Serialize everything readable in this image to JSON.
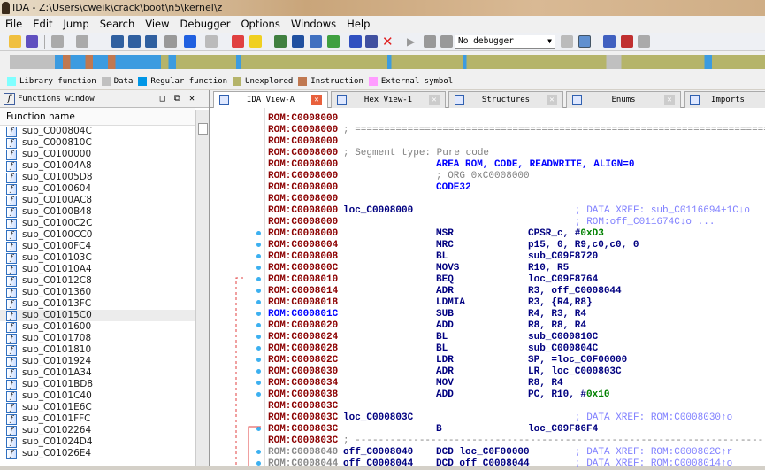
{
  "window": {
    "title": "IDA - Z:\\Users\\cweik\\crack\\boot\\n5\\kernel\\z"
  },
  "menu": [
    "File",
    "Edit",
    "Jump",
    "Search",
    "View",
    "Debugger",
    "Options",
    "Windows",
    "Help"
  ],
  "toolbar": {
    "debugger_select": "No debugger"
  },
  "legend": [
    {
      "label": "Library function",
      "color": "#80ffff"
    },
    {
      "label": "Data",
      "color": "#c0c0c0"
    },
    {
      "label": "Regular function",
      "color": "#0096e6"
    },
    {
      "label": "Unexplored",
      "color": "#b5b46a"
    },
    {
      "label": "Instruction",
      "color": "#c07850"
    },
    {
      "label": "External symbol",
      "color": "#ff9cff"
    }
  ],
  "functions_window": {
    "title": "Functions window",
    "column": "Function name",
    "selected": "sub_C01015C0",
    "items": [
      "sub_C000804C",
      "sub_C000810C",
      "sub_C0100000",
      "sub_C01004A8",
      "sub_C01005D8",
      "sub_C0100604",
      "sub_C0100AC8",
      "sub_C0100B48",
      "sub_C0100C2C",
      "sub_C0100CC0",
      "sub_C0100FC4",
      "sub_C010103C",
      "sub_C01010A4",
      "sub_C01012C8",
      "sub_C0101360",
      "sub_C01013FC",
      "sub_C01015C0",
      "sub_C0101600",
      "sub_C0101708",
      "sub_C0101810",
      "sub_C0101924",
      "sub_C0101A34",
      "sub_C0101BD8",
      "sub_C0101C40",
      "sub_C0101E6C",
      "sub_C0101FFC",
      "sub_C0102264",
      "sub_C01024D4",
      "sub_C01026E4"
    ]
  },
  "tabs": [
    {
      "label": "IDA View-A",
      "active": true
    },
    {
      "label": "Hex View-1"
    },
    {
      "label": "Structures"
    },
    {
      "label": "Enums"
    },
    {
      "label": "Imports"
    }
  ],
  "disasm": [
    {
      "addr": "ROM:C0008000"
    },
    {
      "addr": "ROM:C0008000",
      "sep": "; ============================================================================"
    },
    {
      "addr": "ROM:C0008000"
    },
    {
      "addr": "ROM:C0008000",
      "seg": "; Segment type: Pure code"
    },
    {
      "addr": "ROM:C0008000",
      "dir": "AREA ROM, CODE, READWRITE, ALIGN=0"
    },
    {
      "addr": "ROM:C0008000",
      "dirg": "; ORG 0xC0008000"
    },
    {
      "addr": "ROM:C0008000",
      "dir": "CODE32"
    },
    {
      "addr": "ROM:C0008000"
    },
    {
      "addr": "ROM:C0008000",
      "label": "loc_C0008000",
      "comment": "; DATA XREF: sub_C0116694+1C↓o"
    },
    {
      "addr": "ROM:C0008000",
      "comment": "; ROM:off_C011674C↓o ..."
    },
    {
      "addr": "ROM:C0008000",
      "mn": "MSR",
      "op": "CPSR_c, #",
      "num": "0xD3",
      "dot": true
    },
    {
      "addr": "ROM:C0008004",
      "mn": "MRC",
      "op": "p15, 0, R9,c0,c0, 0",
      "dot": true
    },
    {
      "addr": "ROM:C0008008",
      "mn": "BL",
      "op": "sub_C09F8720",
      "dot": true
    },
    {
      "addr": "ROM:C000800C",
      "mn": "MOVS",
      "op": "R10, R5",
      "dot": true
    },
    {
      "addr": "ROM:C0008010",
      "mn": "BEQ",
      "op": "loc_C09F8764",
      "dot": true
    },
    {
      "addr": "ROM:C0008014",
      "mn": "ADR",
      "op": "R3, off_C0008044",
      "dot": true
    },
    {
      "addr": "ROM:C0008018",
      "mn": "LDMIA",
      "op": "R3, {R4,R8}",
      "dot": true
    },
    {
      "addr": "ROM:C000801C",
      "mn": "SUB",
      "op": "R4, R3, R4",
      "dot": true,
      "current": true
    },
    {
      "addr": "ROM:C0008020",
      "mn": "ADD",
      "op": "R8, R8, R4",
      "dot": true
    },
    {
      "addr": "ROM:C0008024",
      "mn": "BL",
      "op": "sub_C000810C",
      "dot": true
    },
    {
      "addr": "ROM:C0008028",
      "mn": "BL",
      "op": "sub_C000804C",
      "dot": true
    },
    {
      "addr": "ROM:C000802C",
      "mn": "LDR",
      "op": "SP, =loc_C0F00000",
      "dot": true
    },
    {
      "addr": "ROM:C0008030",
      "mn": "ADR",
      "op": "LR, loc_C000803C",
      "dot": true
    },
    {
      "addr": "ROM:C0008034",
      "mn": "MOV",
      "op": "R8, R4",
      "dot": true
    },
    {
      "addr": "ROM:C0008038",
      "mn": "ADD",
      "op": "PC, R10, #",
      "num": "0x10",
      "dot": true
    },
    {
      "addr": "ROM:C000803C"
    },
    {
      "addr": "ROM:C000803C",
      "label": "loc_C000803C",
      "comment": "; DATA XREF: ROM:C0008030↑o"
    },
    {
      "addr": "ROM:C000803C",
      "mn": "B",
      "op": "loc_C09F86F4",
      "dot": true
    },
    {
      "addr": "ROM:C000803C",
      "sep": "; ----------------------------------------------------------------------------"
    },
    {
      "addr": "ROM:C0008040",
      "label": "off_C0008040",
      "mn": "DCD loc_C0F00000",
      "comment": "; DATA XREF: ROM:C000802C↑r",
      "dot": true,
      "gray": true
    },
    {
      "addr": "ROM:C0008044",
      "label": "off_C0008044",
      "mn": "DCD off_C0008044",
      "comment": "; DATA XREF: ROM:C0008014↑o",
      "dot": true,
      "gray": true
    }
  ]
}
